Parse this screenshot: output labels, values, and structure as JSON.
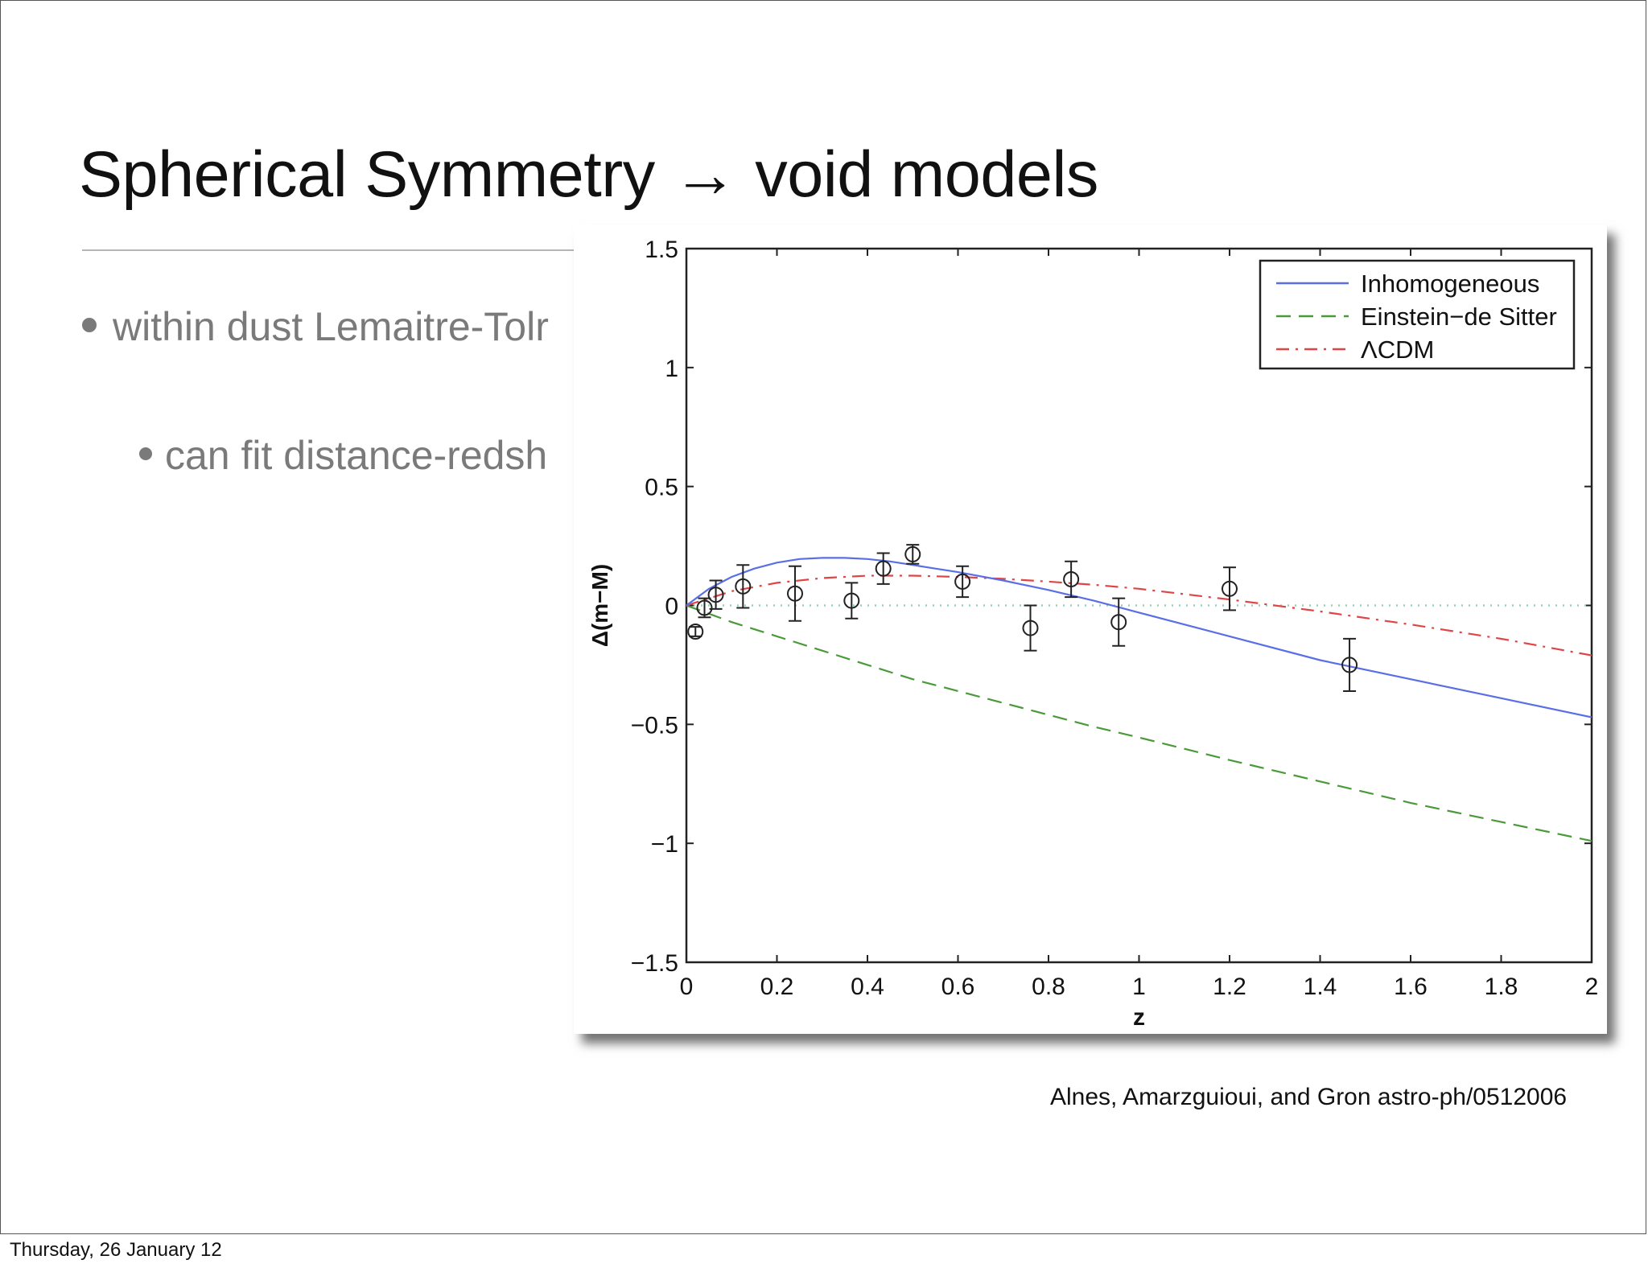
{
  "slide": {
    "title": "Spherical Symmetry → void models",
    "bullet1": "within dust Lemaitre-Tolr",
    "bullet2": "can fit distance-redsh",
    "citation": "Alnes, Amarzguioui, and Gron astro-ph/0512006",
    "footer": "Thursday, 26 January 12"
  },
  "chart_data": {
    "type": "line",
    "title": "",
    "xlabel": "z",
    "ylabel": "Δ(m−M)",
    "xlim": [
      0,
      2
    ],
    "ylim": [
      -1.5,
      1.5
    ],
    "xticks": [
      0,
      0.2,
      0.4,
      0.6,
      0.8,
      1,
      1.2,
      1.4,
      1.6,
      1.8,
      2
    ],
    "xtick_labels": [
      "0",
      "0.2",
      "0.4",
      "0.6",
      "0.8",
      "1",
      "1.2",
      "1.4",
      "1.6",
      "1.8",
      "2"
    ],
    "yticks": [
      1.5,
      1,
      0.5,
      0,
      -0.5,
      -1,
      -1.5
    ],
    "ytick_labels": [
      "1.5",
      "1",
      "0.5",
      "0",
      "−0.5",
      "−1",
      "−1.5"
    ],
    "legend_position": "top-right",
    "grid": false,
    "series": [
      {
        "name": "Inhomogeneous",
        "style": "solid",
        "color": "#5a6ee6",
        "x": [
          0,
          0.05,
          0.1,
          0.15,
          0.2,
          0.25,
          0.3,
          0.35,
          0.4,
          0.45,
          0.5,
          0.55,
          0.6,
          0.7,
          0.8,
          0.9,
          1.0,
          1.2,
          1.4,
          1.6,
          1.8,
          2.0
        ],
        "y": [
          0,
          0.07,
          0.12,
          0.155,
          0.18,
          0.195,
          0.2,
          0.2,
          0.195,
          0.185,
          0.17,
          0.155,
          0.14,
          0.105,
          0.065,
          0.02,
          -0.03,
          -0.13,
          -0.23,
          -0.31,
          -0.39,
          -0.47
        ]
      },
      {
        "name": "Einstein−de Sitter",
        "style": "dashed",
        "color": "#4a9a3a",
        "x": [
          0,
          0.1,
          0.2,
          0.3,
          0.4,
          0.5,
          0.6,
          0.7,
          0.8,
          0.9,
          1.0,
          1.2,
          1.4,
          1.6,
          1.8,
          2.0
        ],
        "y": [
          0,
          -0.07,
          -0.13,
          -0.19,
          -0.25,
          -0.31,
          -0.36,
          -0.41,
          -0.46,
          -0.51,
          -0.555,
          -0.65,
          -0.74,
          -0.83,
          -0.91,
          -0.99
        ]
      },
      {
        "name": "ΛCDM",
        "style": "dashdot",
        "color": "#e04545",
        "x": [
          0,
          0.1,
          0.2,
          0.3,
          0.4,
          0.5,
          0.6,
          0.7,
          0.8,
          0.9,
          1.0,
          1.2,
          1.4,
          1.6,
          1.8,
          2.0
        ],
        "y": [
          0,
          0.06,
          0.095,
          0.115,
          0.125,
          0.125,
          0.12,
          0.112,
          0.1,
          0.087,
          0.07,
          0.025,
          -0.025,
          -0.08,
          -0.14,
          -0.21
        ]
      },
      {
        "name": "",
        "style": "dotted",
        "color": "#8fd6b0",
        "x": [
          0,
          2
        ],
        "y": [
          0,
          0
        ]
      }
    ],
    "data_points": {
      "x": [
        0.02,
        0.04,
        0.065,
        0.125,
        0.24,
        0.365,
        0.435,
        0.5,
        0.61,
        0.76,
        0.85,
        0.955,
        1.2,
        1.465
      ],
      "y": [
        -0.11,
        -0.01,
        0.045,
        0.08,
        0.05,
        0.02,
        0.155,
        0.215,
        0.1,
        -0.095,
        0.11,
        -0.07,
        0.07,
        -0.25
      ],
      "err": [
        0.02,
        0.04,
        0.06,
        0.09,
        0.115,
        0.075,
        0.065,
        0.04,
        0.065,
        0.095,
        0.075,
        0.1,
        0.09,
        0.11
      ]
    }
  }
}
